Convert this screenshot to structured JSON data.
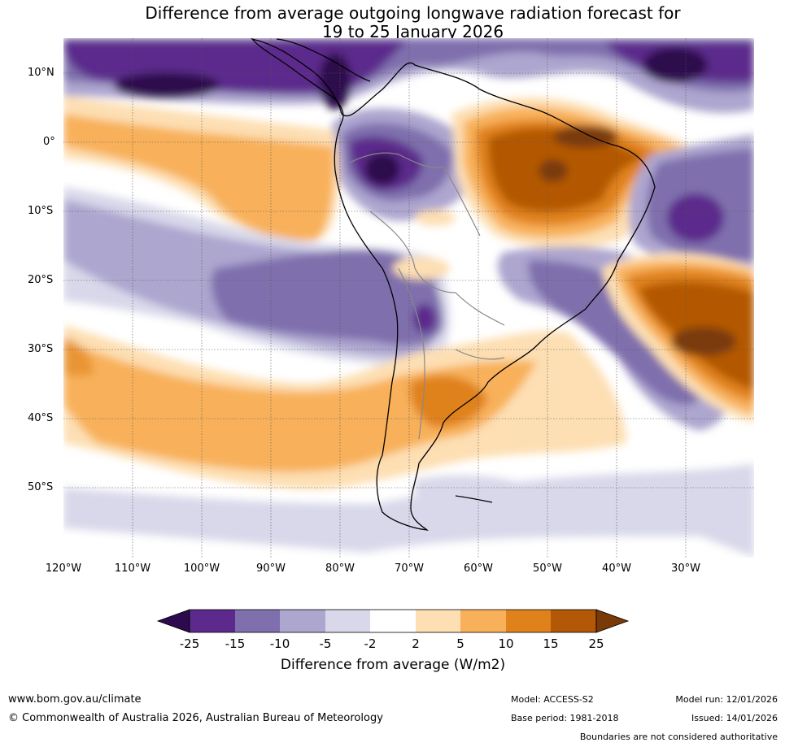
{
  "title_line1": "Difference from average outgoing longwave radiation forecast for",
  "title_line2": "19 to 25 January 2026",
  "lat_labels": [
    "10°N",
    "0°",
    "10°S",
    "20°S",
    "30°S",
    "40°S",
    "50°S"
  ],
  "lon_labels": [
    "120°W",
    "110°W",
    "100°W",
    "90°W",
    "80°W",
    "70°W",
    "60°W",
    "50°W",
    "40°W",
    "30°W"
  ],
  "colorbar": {
    "ticks": [
      "-25",
      "-15",
      "-10",
      "-5",
      "-2",
      "2",
      "5",
      "10",
      "15",
      "25"
    ],
    "colors": [
      "#2d0a4e",
      "#5b2a8c",
      "#7f6fad",
      "#ada6cf",
      "#d8d8ea",
      "#ffffff",
      "#fddfb3",
      "#f8b15a",
      "#e0821b",
      "#b35806",
      "#7a3a08"
    ],
    "label": "Difference from average (W/m2)"
  },
  "footer": {
    "website": "www.bom.gov.au/climate",
    "copyright": "© Commonwealth of Australia 2026, Australian Bureau of Meteorology",
    "model": "Model: ACCESS-S2",
    "base_period": "Base period: 1981-2018",
    "model_run": "Model run: 12/01/2026",
    "issued": "Issued: 14/01/2026",
    "disclaimer": "Boundaries are not considered authoritative"
  }
}
